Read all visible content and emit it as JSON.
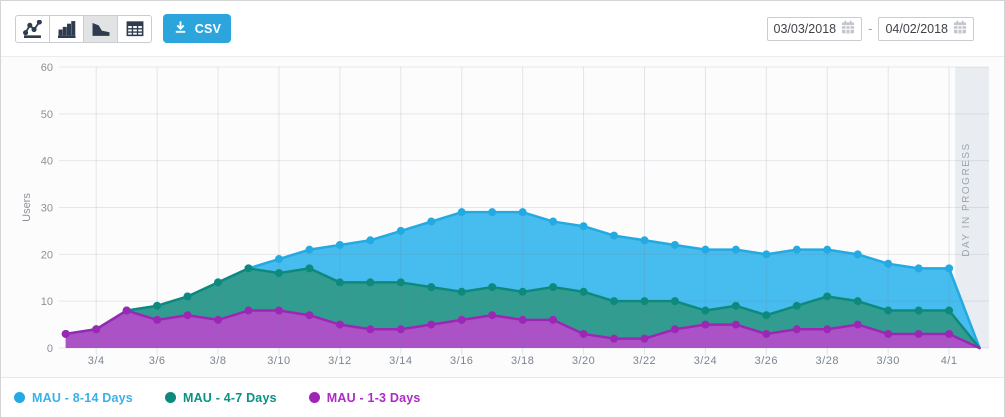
{
  "toolbar": {
    "chart_types": [
      {
        "icon": "line-chart-icon",
        "selected": false
      },
      {
        "icon": "bar-chart-icon",
        "selected": false
      },
      {
        "icon": "area-chart-icon",
        "selected": true
      },
      {
        "icon": "table-icon",
        "selected": false
      }
    ],
    "csv_label": "CSV",
    "csv_icon": "download-icon",
    "csv_color": "#2ca4dc"
  },
  "date_range": {
    "start": "03/03/2018",
    "end": "04/02/2018",
    "separator": "-",
    "icon": "calendar-icon"
  },
  "chart_data": {
    "type": "area",
    "stacked": true,
    "title": "",
    "ylabel": "Users",
    "ylim": [
      0,
      60
    ],
    "yticks": [
      0,
      10,
      20,
      30,
      40,
      50,
      60
    ],
    "grid": true,
    "legend_position": "bottom",
    "x": [
      "3/3",
      "3/4",
      "3/5",
      "3/6",
      "3/7",
      "3/8",
      "3/9",
      "3/10",
      "3/11",
      "3/12",
      "3/13",
      "3/14",
      "3/15",
      "3/16",
      "3/17",
      "3/18",
      "3/19",
      "3/20",
      "3/21",
      "3/22",
      "3/23",
      "3/24",
      "3/25",
      "3/26",
      "3/27",
      "3/28",
      "3/29",
      "3/30",
      "3/31",
      "4/1",
      "4/2"
    ],
    "xtick_labels": [
      "3/4",
      "3/6",
      "3/8",
      "3/10",
      "3/12",
      "3/14",
      "3/16",
      "3/18",
      "3/20",
      "3/22",
      "3/24",
      "3/26",
      "3/28",
      "3/30",
      "4/1"
    ],
    "series": [
      {
        "name": "MAU - 8-14 Days",
        "fill": "#47bcee",
        "line": "#23aae2",
        "text": "#3ab1e8",
        "values": [
          3,
          4,
          8,
          9,
          11,
          14,
          17,
          19,
          21,
          22,
          23,
          25,
          27,
          29,
          29,
          29,
          27,
          26,
          24,
          23,
          22,
          21,
          21,
          20,
          21,
          21,
          20,
          18,
          17,
          17,
          0
        ]
      },
      {
        "name": "MAU - 4-7 Days",
        "fill": "#339c91",
        "line": "#0d8a7d",
        "text": "#0a9184",
        "values": [
          3,
          4,
          8,
          9,
          11,
          14,
          17,
          16,
          17,
          14,
          14,
          14,
          13,
          12,
          13,
          12,
          13,
          12,
          10,
          10,
          10,
          8,
          9,
          7,
          9,
          11,
          10,
          8,
          8,
          8,
          0
        ]
      },
      {
        "name": "MAU - 1-3 Days",
        "fill": "#ab53c6",
        "line": "#9d27b5",
        "text": "#ae29c8",
        "values": [
          3,
          4,
          8,
          6,
          7,
          6,
          8,
          8,
          7,
          5,
          4,
          4,
          5,
          6,
          7,
          6,
          6,
          3,
          2,
          2,
          4,
          5,
          5,
          3,
          4,
          4,
          5,
          3,
          3,
          3,
          0
        ]
      }
    ],
    "in_progress_band": {
      "label": "DAY IN PROGRESS",
      "band_color": "#e9edf2",
      "text_color": "#9aa5b0",
      "covers": "4/2"
    }
  }
}
